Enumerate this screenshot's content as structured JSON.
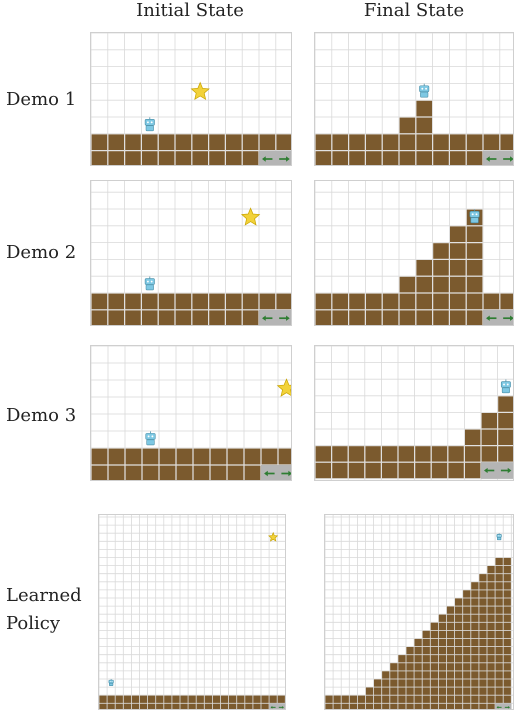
{
  "headers": {
    "initial": "Initial State",
    "final": "Final State"
  },
  "rows": [
    {
      "label": "Demo 1"
    },
    {
      "label": "Demo 2"
    },
    {
      "label": "Demo 3"
    },
    {
      "label_line1": "Learned",
      "label_line2": "Policy"
    }
  ],
  "colors": {
    "ground": "#7b5a2e",
    "grid": "#d9d9d9",
    "star": "#f2d23a",
    "robot": "#7ec8e3",
    "arrow_box": "#b5b5b5",
    "arrow": "#2e7d32"
  },
  "icons": [
    "star-icon",
    "robot-icon",
    "arrow-left-icon",
    "arrow-right-icon"
  ]
}
